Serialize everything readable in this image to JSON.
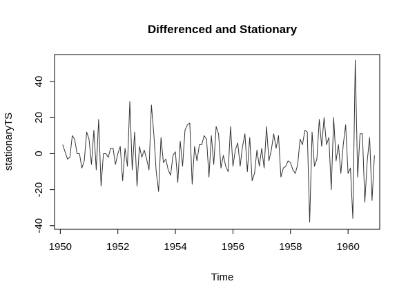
{
  "chart_data": {
    "type": "line",
    "title": "Differenced and Stationary",
    "xlabel": "Time",
    "ylabel": "stationaryTS",
    "xlim": [
      1949.8,
      1961.1
    ],
    "ylim": [
      -42,
      55
    ],
    "xticks": [
      1950,
      1952,
      1954,
      1956,
      1958,
      1960
    ],
    "yticks": [
      -40,
      -20,
      0,
      20,
      40
    ],
    "grid": false,
    "line_color": "#333333",
    "series": [
      {
        "start": 1950.083,
        "frequency": 12,
        "values": [
          5,
          1,
          -3,
          -2,
          10,
          8,
          0,
          0,
          -8,
          -4,
          12,
          8,
          -6,
          13,
          -9,
          19,
          -18,
          0,
          0,
          -2,
          3,
          3,
          -6,
          0,
          4,
          -15,
          3,
          -7,
          29,
          -9,
          12,
          -18,
          4,
          -2,
          2,
          -3,
          -9,
          27,
          11,
          -10,
          -21,
          9,
          -5,
          -3,
          -9,
          -12,
          -1,
          1,
          -16,
          7,
          -7,
          13,
          16,
          17,
          -17,
          4,
          -4,
          5,
          5,
          10,
          8,
          -13,
          10,
          -6,
          15,
          11,
          -8,
          -1,
          -7,
          -10,
          15,
          -7,
          2,
          6,
          -7,
          4,
          11,
          -10,
          9,
          -15,
          -11,
          2,
          -7,
          3,
          -8,
          15,
          -4,
          2,
          11,
          3,
          10,
          -13,
          -8,
          -7,
          -4,
          -5,
          -9,
          -11,
          -6,
          8,
          5,
          13,
          12,
          -38,
          12,
          -7,
          -3,
          19,
          4,
          20,
          5,
          9,
          -20,
          20,
          -4,
          5,
          -11,
          5,
          16,
          -11,
          -8,
          -36,
          52,
          -13,
          11,
          11,
          -27,
          -4,
          9,
          -26,
          -1
        ]
      }
    ]
  }
}
